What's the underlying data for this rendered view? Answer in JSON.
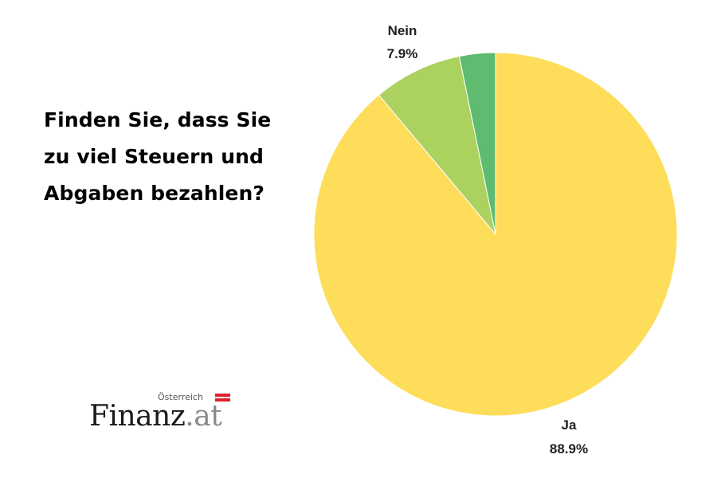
{
  "question": {
    "lines": [
      "Finden Sie, dass Sie",
      "zu viel Steuern und",
      "Abgaben bezahlen?"
    ]
  },
  "chart_data": {
    "type": "pie",
    "title": "Finden Sie, dass Sie zu viel Steuern und Abgaben bezahlen?",
    "slices": [
      {
        "name": "Ja",
        "value": 88.9,
        "label": "88.9%",
        "color": "#fedd5b"
      },
      {
        "name": "Nein",
        "value": 7.9,
        "label": "7.9%",
        "color": "#abd15f"
      },
      {
        "name": "",
        "value": 3.2,
        "label": "",
        "color": "#5fbb6f"
      }
    ],
    "start_angle": "12 o'clock",
    "direction": "clockwise"
  },
  "logo": {
    "country": "Österreich",
    "brand": "Finanz",
    "tld": ".at",
    "flag_colors": [
      "#e0202c",
      "#ffffff",
      "#e0202c"
    ]
  }
}
